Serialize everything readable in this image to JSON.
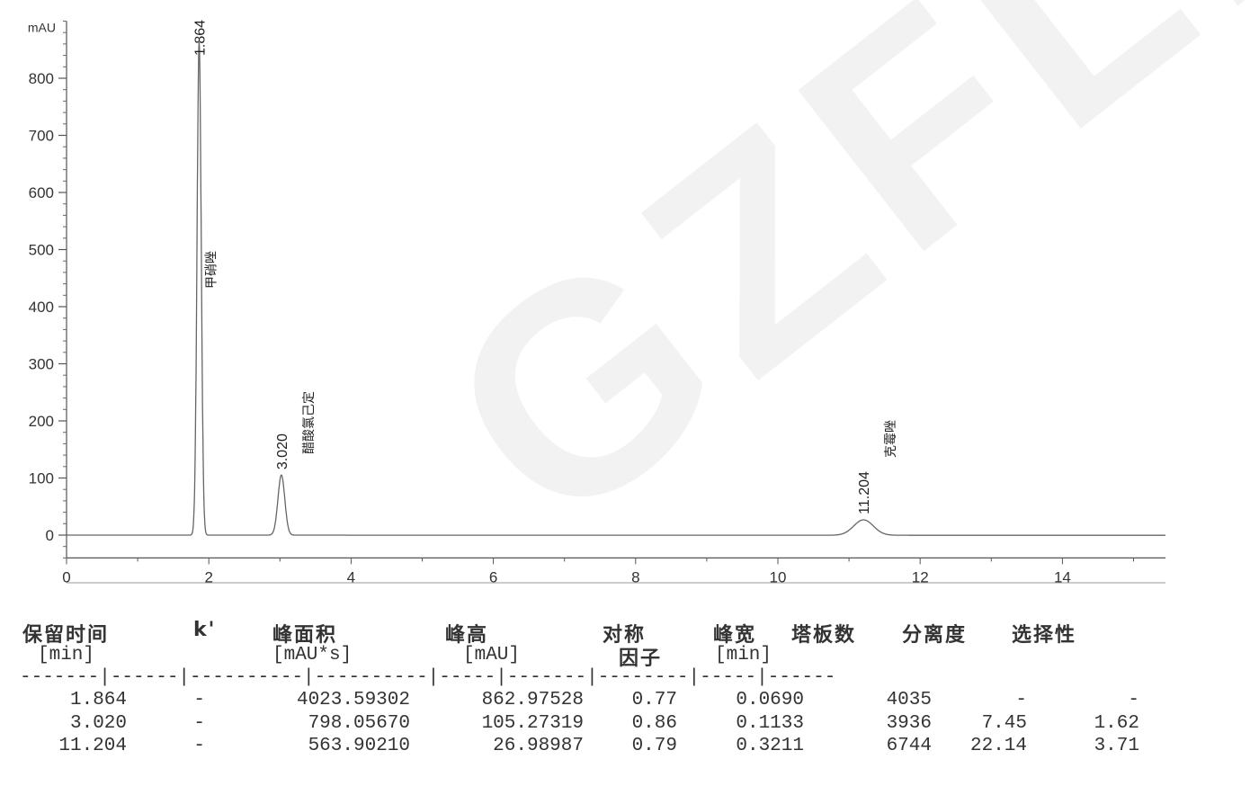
{
  "watermark": "GZFLM",
  "chart_data": {
    "type": "line",
    "title": "",
    "xlabel": "",
    "ylabel": "mAU",
    "xlim": [
      0,
      15.45
    ],
    "ylim": [
      -40,
      900
    ],
    "x_ticks": [
      "0",
      "2",
      "4",
      "6",
      "8",
      "10",
      "12",
      "14"
    ],
    "y_ticks": [
      "0",
      "100",
      "200",
      "300",
      "400",
      "500",
      "600",
      "700",
      "800"
    ],
    "grid": false,
    "peaks": [
      {
        "rt": 1.864,
        "rt_label": "1.864",
        "height": 862.97528,
        "width": 0.069,
        "compound": "甲硝唑"
      },
      {
        "rt": 3.02,
        "rt_label": "3.020",
        "height": 105.27319,
        "width": 0.1133,
        "compound": "醋酸氯己定"
      },
      {
        "rt": 11.204,
        "rt_label": "11.204",
        "height": 26.98987,
        "width": 0.3211,
        "compound": "克霉唑"
      }
    ]
  },
  "table": {
    "headers": [
      {
        "line1": "保留时间",
        "line2": "[min]"
      },
      {
        "line1": "k'",
        "line2": ""
      },
      {
        "line1": "峰面积",
        "line2": "[mAU*s]"
      },
      {
        "line1": "峰高",
        "line2": "[mAU]"
      },
      {
        "line1": "对称",
        "line2": "因子"
      },
      {
        "line1": "峰宽",
        "line2": "[min]"
      },
      {
        "line1": "塔板数",
        "line2": ""
      },
      {
        "line1": "分离度",
        "line2": ""
      },
      {
        "line1": "选择性",
        "line2": ""
      }
    ],
    "separator": "-------|------|----------|----------|-----|-------|--------|-----|------",
    "rows": [
      [
        "1.864",
        "-",
        "4023.59302",
        "862.97528",
        "0.77",
        "0.0690",
        "4035",
        "-",
        "-"
      ],
      [
        "3.020",
        "-",
        "798.05670",
        "105.27319",
        "0.86",
        "0.1133",
        "3936",
        "7.45",
        "1.62"
      ],
      [
        "11.204",
        "-",
        "563.90210",
        "26.98987",
        "0.79",
        "0.3211",
        "6744",
        "22.14",
        "3.71"
      ]
    ]
  }
}
